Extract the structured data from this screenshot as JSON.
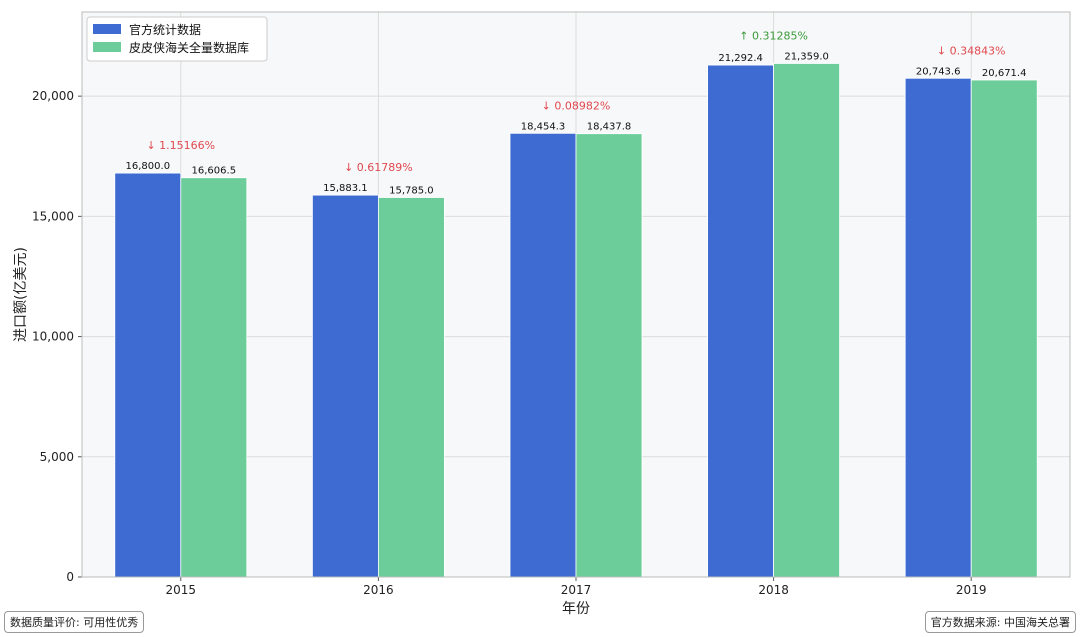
{
  "chart_data": {
    "type": "bar",
    "xlabel": "年份",
    "ylabel": "进口额(亿美元)",
    "categories": [
      "2015",
      "2016",
      "2017",
      "2018",
      "2019"
    ],
    "series": [
      {
        "name": "官方统计数据",
        "color": "#3d6bd1",
        "values": [
          16800.0,
          15883.1,
          18454.3,
          21292.4,
          20743.6
        ],
        "labels": [
          "16,800.0",
          "15,883.1",
          "18,454.3",
          "21,292.4",
          "20,743.6"
        ]
      },
      {
        "name": "皮皮侠海关全量数据库",
        "color": "#6ccd9a",
        "values": [
          16606.5,
          15785.0,
          18437.8,
          21359.0,
          20671.4
        ],
        "labels": [
          "16,606.5",
          "15,785.0",
          "18,437.8",
          "21,359.0",
          "20,671.4"
        ]
      }
    ],
    "diffs": [
      {
        "arrow": "↓",
        "text": "1.15166%",
        "dir": "down"
      },
      {
        "arrow": "↓",
        "text": "0.61789%",
        "dir": "down"
      },
      {
        "arrow": "↓",
        "text": "0.08982%",
        "dir": "down"
      },
      {
        "arrow": "↑",
        "text": "0.31285%",
        "dir": "up"
      },
      {
        "arrow": "↓",
        "text": "0.34843%",
        "dir": "down"
      }
    ],
    "ylim": [
      0,
      23500
    ],
    "yticks": [
      0,
      5000,
      10000,
      15000,
      20000
    ],
    "ytick_labels": [
      "0",
      "5,000",
      "10,000",
      "15,000",
      "20,000"
    ],
    "grid": true,
    "legend_position": "top-left",
    "colors": {
      "up": "#3a9a3a",
      "down": "#e0484e",
      "plot_bg": "#f7f8fa",
      "grid": "#dcdcdc"
    }
  },
  "notes": {
    "quality": "数据质量评价: 可用性优秀",
    "source": "官方数据来源: 中国海关总署"
  }
}
